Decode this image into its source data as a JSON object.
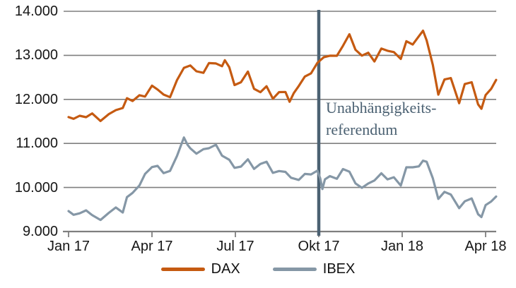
{
  "chart_data": {
    "type": "line",
    "title": "",
    "xlabel": "",
    "ylabel": "",
    "grid": true,
    "legend_position": "bottom-center",
    "x_axis": {
      "tick_labels": [
        "Jan 17",
        "Apr 17",
        "Jul 17",
        "Okt 17",
        "Jan 18",
        "Apr 18"
      ],
      "tick_months": [
        0,
        3,
        6,
        9,
        12,
        15
      ],
      "unit": "months since Jan 2017"
    },
    "y_axis": {
      "tick_labels": [
        "14.000",
        "13.000",
        "12.000",
        "11.000",
        "10.000",
        "9.000"
      ],
      "tick_values": [
        14000,
        13000,
        12000,
        11000,
        10000,
        9000
      ],
      "min": 9000,
      "max": 14000
    },
    "colors": {
      "grid": "#7f7f7f",
      "axis": "#7f7f7f",
      "tick_text": "#161616"
    },
    "annotation": {
      "line1": "Unabhängigkeits-",
      "line2": "referendum",
      "x_month": 9.0,
      "color": "#4b6172"
    },
    "series": [
      {
        "name": "DAX",
        "color": "#c55a11",
        "points": [
          [
            0.0,
            11598
          ],
          [
            0.18,
            11560
          ],
          [
            0.4,
            11629
          ],
          [
            0.63,
            11596
          ],
          [
            0.85,
            11681
          ],
          [
            1.15,
            11509
          ],
          [
            1.45,
            11667
          ],
          [
            1.7,
            11757
          ],
          [
            1.95,
            11804
          ],
          [
            2.1,
            12027
          ],
          [
            2.3,
            11963
          ],
          [
            2.55,
            12095
          ],
          [
            2.75,
            12064
          ],
          [
            3.0,
            12313
          ],
          [
            3.2,
            12225
          ],
          [
            3.42,
            12109
          ],
          [
            3.65,
            12049
          ],
          [
            3.9,
            12438
          ],
          [
            4.15,
            12717
          ],
          [
            4.38,
            12770
          ],
          [
            4.6,
            12638
          ],
          [
            4.85,
            12602
          ],
          [
            5.05,
            12823
          ],
          [
            5.3,
            12816
          ],
          [
            5.52,
            12753
          ],
          [
            5.62,
            12889
          ],
          [
            5.78,
            12733
          ],
          [
            5.97,
            12325
          ],
          [
            6.2,
            12389
          ],
          [
            6.45,
            12632
          ],
          [
            6.67,
            12240
          ],
          [
            6.9,
            12163
          ],
          [
            7.12,
            12298
          ],
          [
            7.35,
            12014
          ],
          [
            7.57,
            12165
          ],
          [
            7.8,
            12168
          ],
          [
            7.95,
            11946
          ],
          [
            8.1,
            12142
          ],
          [
            8.28,
            12304
          ],
          [
            8.5,
            12519
          ],
          [
            8.72,
            12592
          ],
          [
            8.95,
            12829
          ],
          [
            9.18,
            12956
          ],
          [
            9.4,
            12992
          ],
          [
            9.65,
            12991
          ],
          [
            9.87,
            13217
          ],
          [
            10.1,
            13479
          ],
          [
            10.32,
            13127
          ],
          [
            10.55,
            12994
          ],
          [
            10.78,
            13060
          ],
          [
            11.0,
            12861
          ],
          [
            11.25,
            13154
          ],
          [
            11.47,
            13104
          ],
          [
            11.7,
            13073
          ],
          [
            11.95,
            12918
          ],
          [
            12.15,
            13320
          ],
          [
            12.38,
            13245
          ],
          [
            12.6,
            13434
          ],
          [
            12.75,
            13560
          ],
          [
            12.88,
            13340
          ],
          [
            13.1,
            12785
          ],
          [
            13.3,
            12107
          ],
          [
            13.52,
            12452
          ],
          [
            13.75,
            12484
          ],
          [
            14.05,
            11913
          ],
          [
            14.25,
            12347
          ],
          [
            14.5,
            12390
          ],
          [
            14.73,
            11886
          ],
          [
            14.85,
            11787
          ],
          [
            15.0,
            12097
          ],
          [
            15.2,
            12241
          ],
          [
            15.38,
            12442
          ]
        ]
      },
      {
        "name": "IBEX",
        "color": "#8597a6",
        "points": [
          [
            0.0,
            9463
          ],
          [
            0.18,
            9380
          ],
          [
            0.4,
            9413
          ],
          [
            0.63,
            9480
          ],
          [
            0.85,
            9371
          ],
          [
            1.15,
            9263
          ],
          [
            1.45,
            9425
          ],
          [
            1.7,
            9547
          ],
          [
            1.95,
            9431
          ],
          [
            2.1,
            9780
          ],
          [
            2.3,
            9876
          ],
          [
            2.55,
            10046
          ],
          [
            2.75,
            10308
          ],
          [
            3.0,
            10463
          ],
          [
            3.2,
            10490
          ],
          [
            3.42,
            10326
          ],
          [
            3.65,
            10377
          ],
          [
            3.9,
            10716
          ],
          [
            4.15,
            11135
          ],
          [
            4.28,
            10970
          ],
          [
            4.38,
            10888
          ],
          [
            4.6,
            10767
          ],
          [
            4.85,
            10870
          ],
          [
            5.05,
            10891
          ],
          [
            5.3,
            10971
          ],
          [
            5.52,
            10723
          ],
          [
            5.78,
            10630
          ],
          [
            5.97,
            10445
          ],
          [
            6.2,
            10475
          ],
          [
            6.45,
            10639
          ],
          [
            6.67,
            10422
          ],
          [
            6.9,
            10535
          ],
          [
            7.12,
            10585
          ],
          [
            7.35,
            10332
          ],
          [
            7.57,
            10373
          ],
          [
            7.8,
            10354
          ],
          [
            8.0,
            10221
          ],
          [
            8.28,
            10172
          ],
          [
            8.5,
            10307
          ],
          [
            8.72,
            10296
          ],
          [
            8.95,
            10382
          ],
          [
            9.05,
            10211
          ],
          [
            9.13,
            9965
          ],
          [
            9.22,
            10185
          ],
          [
            9.4,
            10258
          ],
          [
            9.65,
            10197
          ],
          [
            9.87,
            10418
          ],
          [
            10.1,
            10359
          ],
          [
            10.32,
            10093
          ],
          [
            10.55,
            9992
          ],
          [
            10.78,
            10091
          ],
          [
            11.0,
            10158
          ],
          [
            11.25,
            10322
          ],
          [
            11.47,
            10184
          ],
          [
            11.7,
            10233
          ],
          [
            11.95,
            10044
          ],
          [
            12.15,
            10458
          ],
          [
            12.38,
            10459
          ],
          [
            12.6,
            10479
          ],
          [
            12.75,
            10609
          ],
          [
            12.88,
            10583
          ],
          [
            13.1,
            10211
          ],
          [
            13.3,
            9741
          ],
          [
            13.52,
            9901
          ],
          [
            13.75,
            9840
          ],
          [
            14.05,
            9531
          ],
          [
            14.25,
            9686
          ],
          [
            14.5,
            9752
          ],
          [
            14.73,
            9393
          ],
          [
            14.85,
            9328
          ],
          [
            15.0,
            9600
          ],
          [
            15.2,
            9683
          ],
          [
            15.38,
            9795
          ]
        ]
      }
    ]
  }
}
